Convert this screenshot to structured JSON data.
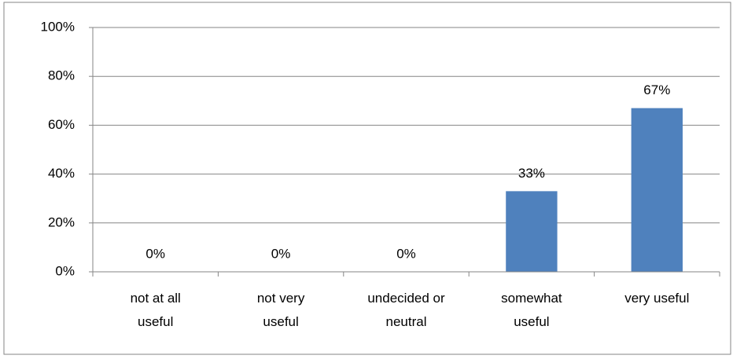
{
  "chart_data": {
    "type": "bar",
    "categories": [
      "not at all useful",
      "not very useful",
      "undecided or neutral",
      "somewhat useful",
      "very useful"
    ],
    "values": [
      0,
      0,
      0,
      33,
      67
    ],
    "value_labels": [
      "0%",
      "0%",
      "0%",
      "33%",
      "67%"
    ],
    "color": "#4f81bd",
    "ylim": [
      0,
      100
    ],
    "yticks": [
      {
        "value": 0,
        "label": "0%"
      },
      {
        "value": 20,
        "label": "20%"
      },
      {
        "value": 40,
        "label": "40%"
      },
      {
        "value": 60,
        "label": "60%"
      },
      {
        "value": 80,
        "label": "80%"
      },
      {
        "value": 100,
        "label": "100%"
      }
    ],
    "grid": true
  }
}
